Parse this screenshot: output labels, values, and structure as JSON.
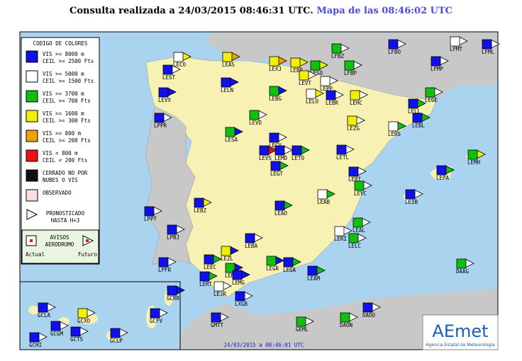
{
  "header": {
    "query": "Consulta realizada a 24/03/2015 08:46:31 UTC.",
    "map_time": "Mapa de las 08:46:02 UTC"
  },
  "legend": {
    "title": "CODIGO DE COLORES",
    "items": [
      {
        "color": "#1010e8",
        "lines": [
          "VIS >= 8000 m",
          "CEIL >= 2500 Fts"
        ]
      },
      {
        "color": "#ffffff",
        "lines": [
          "VIS >= 5000 m",
          "CEIL >= 1500 Fts"
        ]
      },
      {
        "color": "#10c010",
        "lines": [
          "VIS >= 3700 m",
          "CEIL >= 700 Fts"
        ]
      },
      {
        "color": "#f0f000",
        "lines": [
          "VIS >= 1600 m",
          "CEIL >= 300 Fts"
        ]
      },
      {
        "color": "#f0a000",
        "lines": [
          "VIS >= 800 m",
          "CEIL >= 200 Fts"
        ]
      },
      {
        "color": "#f01010",
        "lines": [
          "VIS < 800 m",
          "CEIL < 200 Fts"
        ]
      },
      {
        "color": "#101010",
        "lines": [
          "CERRADO NO POR",
          "NUBES O VIS"
        ]
      },
      {
        "color": "#f8e0e0",
        "lines": [
          "OBSERVADO"
        ]
      }
    ],
    "forecast": [
      "PRONOSTICADO",
      "HASTA H+3"
    ],
    "warnings": [
      "AVISOS",
      "AERODROMO"
    ],
    "actual": "Actual",
    "future": "Futuro"
  },
  "stations": [
    {
      "code": "LFBZ",
      "color": "#10c010",
      "forecast": "#ffffff"
    },
    {
      "code": "LFBO",
      "color": "#1010e8",
      "forecast": "#ffffff"
    },
    {
      "code": "LFMT",
      "color": "#ffffff",
      "forecast": "#ffffff"
    },
    {
      "code": "LFML",
      "color": "#1010e8",
      "forecast": "#ffffff"
    },
    {
      "code": "LFBP",
      "color": "#10c010",
      "forecast": "#ffffff"
    },
    {
      "code": "LFMP",
      "color": "#1010e8",
      "forecast": "#ffffff"
    },
    {
      "code": "LECO",
      "color": "#ffffff",
      "forecast": "#f0f000"
    },
    {
      "code": "LEAS",
      "color": "#f0f000",
      "forecast": "#f0a000"
    },
    {
      "code": "LEXJ",
      "color": "#f0f000",
      "forecast": "#f0a000"
    },
    {
      "code": "LEBB",
      "color": "#f0f000",
      "forecast": "#f0f000"
    },
    {
      "code": "LESO",
      "color": "#10c010",
      "forecast": "#f0f000"
    },
    {
      "code": "LEST",
      "color": "#1010e8",
      "forecast": "#ffffff"
    },
    {
      "code": "LEVT",
      "color": "#f0f000",
      "forecast": "#ffffff"
    },
    {
      "code": "LEPP",
      "color": "#ffffff",
      "forecast": "#ffffff"
    },
    {
      "code": "LELN",
      "color": "#1010e8",
      "forecast": "#1010e8"
    },
    {
      "code": "LEBG",
      "color": "#10c010",
      "forecast": "#1010e8"
    },
    {
      "code": "LELO",
      "color": "#ffffff",
      "forecast": "#f0f000"
    },
    {
      "code": "LEBR",
      "color": "#1010e8",
      "forecast": "#ffffff"
    },
    {
      "code": "LEHC",
      "color": "#f0f000",
      "forecast": "#ffffff"
    },
    {
      "code": "LEGE",
      "color": "#10c010",
      "forecast": "#ffffff"
    },
    {
      "code": "LEVX",
      "color": "#1010e8",
      "forecast": "#1010e8"
    },
    {
      "code": "LELL",
      "color": "#1010e8",
      "forecast": "#10c010"
    },
    {
      "code": "LEBL",
      "color": "#1010e8",
      "forecast": "#10c010"
    },
    {
      "code": "LPPR",
      "color": "#1010e8",
      "forecast": "#ffffff"
    },
    {
      "code": "LEVD",
      "color": "#10c010",
      "forecast": "#ffffff"
    },
    {
      "code": "LEZG",
      "color": "#f0f000",
      "forecast": "#ffffff"
    },
    {
      "code": "LERS",
      "color": "#ffffff",
      "forecast": "#10c010"
    },
    {
      "code": "LESA",
      "color": "#10c010",
      "forecast": "#1010e8"
    },
    {
      "code": "LECV",
      "color": "#1010e8",
      "forecast": "#ffffff"
    },
    {
      "code": "LEVS",
      "color": "#1010e8",
      "forecast": "#f01010"
    },
    {
      "code": "LEMD",
      "color": "#1010e8",
      "forecast": "#ffffff"
    },
    {
      "code": "LETO",
      "color": "#1010e8",
      "forecast": "#10c010"
    },
    {
      "code": "LETL",
      "color": "#1010e8",
      "forecast": "#ffffff"
    },
    {
      "code": "LEGT",
      "color": "#1010e8",
      "forecast": "#10c010"
    },
    {
      "code": "LEMH",
      "color": "#10c010",
      "forecast": "#f0f000"
    },
    {
      "code": "LEBT",
      "color": "#1010e8",
      "forecast": "#ffffff"
    },
    {
      "code": "LEPA",
      "color": "#1010e8",
      "forecast": "#10c010"
    },
    {
      "code": "LEVC",
      "color": "#10c010",
      "forecast": "#ffffff"
    },
    {
      "code": "LEAB",
      "color": "#ffffff",
      "forecast": "#10c010"
    },
    {
      "code": "LEIB",
      "color": "#1010e8",
      "forecast": "#ffffff"
    },
    {
      "code": "LEBZ",
      "color": "#1010e8",
      "forecast": "#f0f000"
    },
    {
      "code": "LEAO",
      "color": "#1010e8",
      "forecast": "#10c010"
    },
    {
      "code": "LPPT",
      "color": "#1010e8",
      "forecast": "#ffffff"
    },
    {
      "code": "LEAL",
      "color": "#10c010",
      "forecast": "#ffffff"
    },
    {
      "code": "LERI",
      "color": "#ffffff",
      "forecast": "#ffffff"
    },
    {
      "code": "LELC",
      "color": "#10c010",
      "forecast": "#ffffff"
    },
    {
      "code": "LPBJ",
      "color": "#1010e8",
      "forecast": "#ffffff"
    },
    {
      "code": "LEBA",
      "color": "#1010e8",
      "forecast": "#ffffff"
    },
    {
      "code": "LEZL",
      "color": "#f0f000",
      "forecast": "#1010e8"
    },
    {
      "code": "LEEC",
      "color": "#1010e8",
      "forecast": "#10c010"
    },
    {
      "code": "LEMO",
      "color": "#10c010",
      "forecast": "#1010e8"
    },
    {
      "code": "LEGR",
      "color": "#10c010",
      "forecast": "#1010e8"
    },
    {
      "code": "LEGA",
      "color": "#1010e8",
      "forecast": "#10c010"
    },
    {
      "code": "LEAM",
      "color": "#1010e8",
      "forecast": "#10c010"
    },
    {
      "code": "DAAG",
      "color": "#10c010",
      "forecast": "#ffffff"
    },
    {
      "code": "LPFR",
      "color": "#1010e8",
      "forecast": "#ffffff"
    },
    {
      "code": "LEMG",
      "color": "#1010e8",
      "forecast": "#1010e8"
    },
    {
      "code": "LERT",
      "color": "#1010e8",
      "forecast": "#10c010"
    },
    {
      "code": "LEJR",
      "color": "#ffffff",
      "forecast": "#ffffff"
    },
    {
      "code": "GCRR",
      "color": "#1010e8",
      "forecast": "#1010e8"
    },
    {
      "code": "LXGB",
      "color": "#1010e8",
      "forecast": "#ffffff"
    },
    {
      "code": "DAOO",
      "color": "#1010e8",
      "forecast": "#ffffff"
    },
    {
      "code": "GCLA",
      "color": "#1010e8",
      "forecast": "#ffffff"
    },
    {
      "code": "GCXO",
      "color": "#f0f000",
      "forecast": "#ffffff"
    },
    {
      "code": "GCFV",
      "color": "#1010e8",
      "forecast": "#ffffff"
    },
    {
      "code": "GMTT",
      "color": "#1010e8",
      "forecast": "#ffffff"
    },
    {
      "code": "GEML",
      "color": "#10c010",
      "forecast": "#ffffff"
    },
    {
      "code": "DAON",
      "color": "#10c010",
      "forecast": "#ffffff"
    },
    {
      "code": "GCGM",
      "color": "#1010e8",
      "forecast": "#ffffff"
    },
    {
      "code": "GCTS",
      "color": "#1010e8",
      "forecast": "#ffffff"
    },
    {
      "code": "GCLP",
      "color": "#1010e8",
      "forecast": "#ffffff"
    },
    {
      "code": "GCHI",
      "color": "#1010e8",
      "forecast": "#ffffff"
    }
  ],
  "footer": {
    "timestamp": "24/03/2015 a 08:46:01 UTC"
  },
  "logo": {
    "name": "AEmet",
    "agency": "Agencia Estatal de Meteorología"
  }
}
